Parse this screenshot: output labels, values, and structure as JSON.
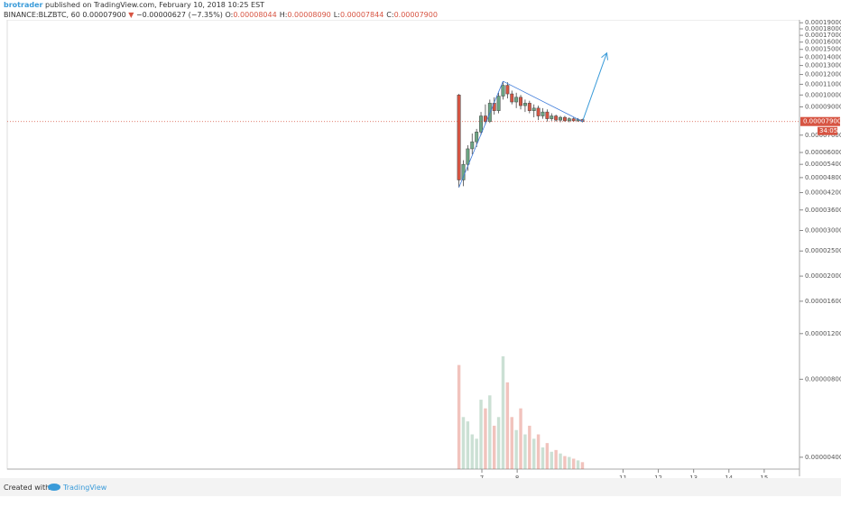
{
  "header": {
    "author": "brotrader",
    "published": "published on TradingView.com, February 10, 2018 10:25 EST",
    "symbol": "BINANCE:BLZBTC, 60",
    "last": "0.00007900",
    "arrow": "▼",
    "change": "−0.00000627 (−7.35%)",
    "ohlc": [
      {
        "key": "O:",
        "value": "0.00008044"
      },
      {
        "key": "H:",
        "value": "0.00008090"
      },
      {
        "key": "L:",
        "value": "0.00007844"
      },
      {
        "key": "C:",
        "value": "0.00007900"
      }
    ]
  },
  "footer": {
    "created": "Created with",
    "brand": "TradingView"
  },
  "chart_data": {
    "type": "candlestick",
    "x": [
      6.35,
      6.475,
      6.6,
      6.725,
      6.85,
      6.975,
      7.1,
      7.225,
      7.35,
      7.475,
      7.6,
      7.725,
      7.85,
      7.975,
      8.1,
      8.225,
      8.35,
      8.475,
      8.6,
      8.725,
      8.85,
      8.975,
      9.1,
      9.225,
      9.35,
      9.475,
      9.6,
      9.725,
      9.85
    ],
    "open": [
      0.0001,
      4.7e-05,
      5.4e-05,
      6.2e-05,
      6.6e-05,
      7.2e-05,
      8.3e-05,
      7.9e-05,
      9.3e-05,
      8.7e-05,
      9.9e-05,
      0.000109,
      0.000101,
      9.4e-05,
      9.8e-05,
      9.1e-05,
      9.3e-05,
      8.7e-05,
      8.9e-05,
      8.3e-05,
      8.6e-05,
      8.1e-05,
      8.3e-05,
      8e-05,
      8.2e-05,
      7.95e-05,
      8.1e-05,
      7.95e-05,
      8.044e-05
    ],
    "high": [
      0.000101,
      5.6e-05,
      6.4e-05,
      7.1e-05,
      7.4e-05,
      8.6e-05,
      9.2e-05,
      9.6e-05,
      9.8e-05,
      0.000102,
      0.000113,
      0.000112,
      0.000104,
      0.000102,
      0.0001,
      9.6e-05,
      9.5e-05,
      9.2e-05,
      9.1e-05,
      8.9e-05,
      8.8e-05,
      8.5e-05,
      8.4e-05,
      8.3e-05,
      8.3e-05,
      8.2e-05,
      8.2e-05,
      8.15e-05,
      8.09e-05
    ],
    "low": [
      4.4e-05,
      4.45e-05,
      5.1e-05,
      5.9e-05,
      6.3e-05,
      7e-05,
      7.7e-05,
      7.8e-05,
      8.4e-05,
      8.5e-05,
      9.6e-05,
      9.7e-05,
      9.2e-05,
      8.9e-05,
      8.8e-05,
      8.6e-05,
      8.5e-05,
      8.2e-05,
      8e-05,
      8.1e-05,
      7.9e-05,
      7.95e-05,
      7.9e-05,
      7.85e-05,
      7.9e-05,
      7.85e-05,
      7.9e-05,
      7.88e-05,
      7.844e-05
    ],
    "close": [
      4.7e-05,
      5.4e-05,
      6.2e-05,
      6.6e-05,
      7.2e-05,
      8.3e-05,
      7.9e-05,
      9.3e-05,
      8.7e-05,
      9.9e-05,
      0.000109,
      0.000101,
      9.4e-05,
      9.8e-05,
      9.1e-05,
      9.3e-05,
      8.7e-05,
      8.9e-05,
      8.3e-05,
      8.6e-05,
      8.1e-05,
      8.3e-05,
      8e-05,
      8.2e-05,
      7.95e-05,
      8.1e-05,
      7.95e-05,
      8.044e-05,
      7.9e-05
    ],
    "volume": [
      120,
      60,
      55,
      40,
      35,
      80,
      70,
      85,
      50,
      60,
      130,
      100,
      60,
      45,
      70,
      40,
      50,
      35,
      40,
      25,
      30,
      20,
      22,
      18,
      15,
      14,
      12,
      10,
      8
    ],
    "up_color": "#6ba583",
    "down_color": "#d75442",
    "xlim": [
      -6.45,
      16
    ],
    "xticks": [
      7,
      8,
      11,
      12,
      13,
      14,
      15
    ],
    "ylim": [
      3.6e-06,
      0.000195
    ],
    "log_scale": true,
    "yticks": [
      {
        "value": 0.00019,
        "label": "0.00019000"
      },
      {
        "value": 0.00018,
        "label": "0.00018000"
      },
      {
        "value": 0.00017,
        "label": "0.00017000"
      },
      {
        "value": 0.00016,
        "label": "0.00016000"
      },
      {
        "value": 0.00015,
        "label": "0.00015000"
      },
      {
        "value": 0.00014,
        "label": "0.00014000"
      },
      {
        "value": 0.00013,
        "label": "0.00013000"
      },
      {
        "value": 0.00012,
        "label": "0.00012000"
      },
      {
        "value": 0.00011,
        "label": "0.00011000"
      },
      {
        "value": 0.0001,
        "label": "0.00010000"
      },
      {
        "value": 9e-05,
        "label": "0.00009000"
      },
      {
        "value": 7e-05,
        "label": "0.00007000"
      },
      {
        "value": 6e-05,
        "label": "0.00006000"
      },
      {
        "value": 5.4e-05,
        "label": "0.00005400"
      },
      {
        "value": 4.8e-05,
        "label": "0.00004800"
      },
      {
        "value": 4.2e-05,
        "label": "0.00004200"
      },
      {
        "value": 3.6e-05,
        "label": "0.00003600"
      },
      {
        "value": 3e-05,
        "label": "0.00003000"
      },
      {
        "value": 2.5e-05,
        "label": "0.00002500"
      },
      {
        "value": 2e-05,
        "label": "0.00002000"
      },
      {
        "value": 1.6e-05,
        "label": "0.00001600"
      },
      {
        "value": 1.2e-05,
        "label": "0.00001200"
      },
      {
        "value": 8e-06,
        "label": "0.00000800"
      },
      {
        "value": 4e-06,
        "label": "0.00000400"
      }
    ],
    "last_price_label": "0.00007900",
    "countdown": "34:05"
  }
}
